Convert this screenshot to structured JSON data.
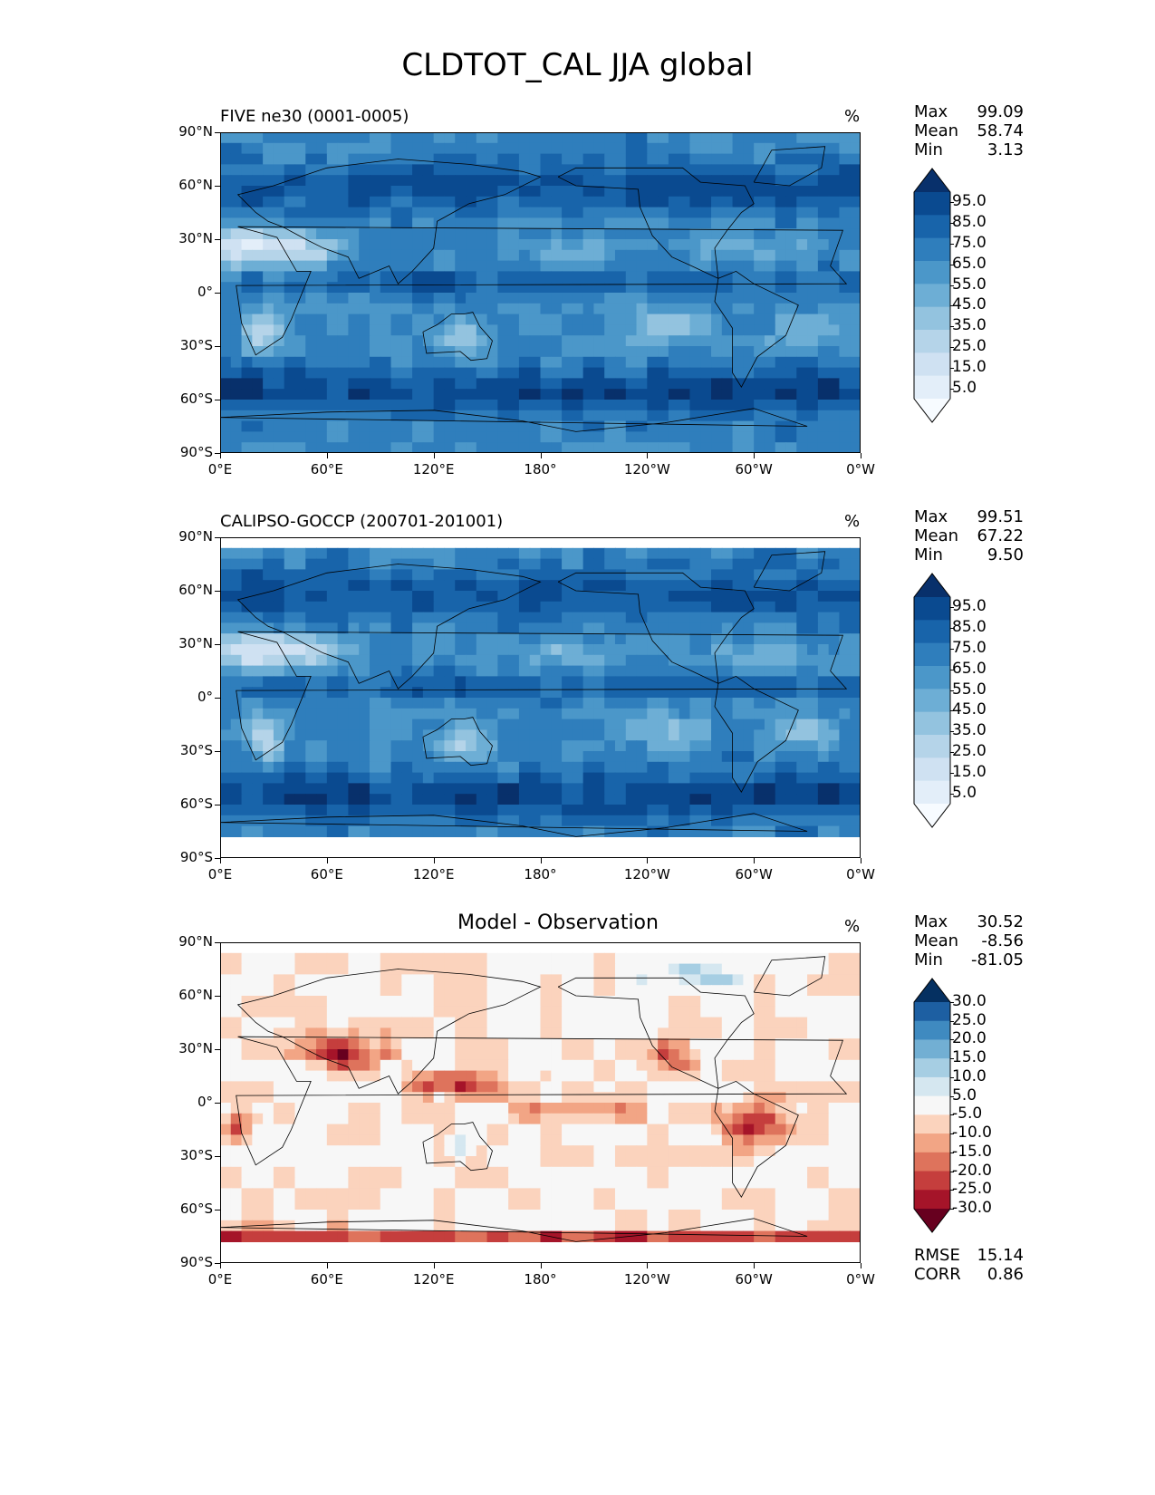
{
  "title": "CLDTOT_CAL JJA global",
  "chart_data": [
    {
      "type": "heatmap",
      "panel": "test",
      "title": "FIVE ne30 (0001-0005)",
      "units": "%",
      "xlabel": "",
      "ylabel": "",
      "xticks": [
        "0°E",
        "60°E",
        "120°E",
        "180°",
        "120°W",
        "60°W",
        "0°W"
      ],
      "yticks": [
        "90°N",
        "60°N",
        "30°N",
        "0°",
        "30°S",
        "60°S",
        "90°S"
      ],
      "xlim": [
        0,
        360
      ],
      "ylim": [
        -90,
        90
      ],
      "stats": {
        "max_label": "Max",
        "max": "99.09",
        "mean_label": "Mean",
        "mean": "58.74",
        "min_label": "Min",
        "min": "3.13"
      },
      "colorbar": {
        "levels": [
          0,
          10,
          20,
          30,
          40,
          50,
          60,
          70,
          80,
          90,
          100
        ],
        "labels": [
          "95.0",
          "85.0",
          "75.0",
          "65.0",
          "55.0",
          "45.0",
          "35.0",
          "25.0",
          "15.0",
          "5.0"
        ],
        "colors": [
          "#f7fbff",
          "#e3eef9",
          "#cfe1f2",
          "#b5d4e9",
          "#93c3df",
          "#6daed5",
          "#4b97c9",
          "#2f7ebc",
          "#1864aa",
          "#0a4a90",
          "#08306b"
        ]
      }
    },
    {
      "type": "heatmap",
      "panel": "reference",
      "title": "CALIPSO-GOCCP (200701-201001)",
      "units": "%",
      "xlabel": "",
      "ylabel": "",
      "xticks": [
        "0°E",
        "60°E",
        "120°E",
        "180°",
        "120°W",
        "60°W",
        "0°W"
      ],
      "yticks": [
        "90°N",
        "60°N",
        "30°N",
        "0°",
        "30°S",
        "60°S",
        "90°S"
      ],
      "xlim": [
        0,
        360
      ],
      "ylim": [
        -90,
        90
      ],
      "stats": {
        "max_label": "Max",
        "max": "99.51",
        "mean_label": "Mean",
        "mean": "67.22",
        "min_label": "Min",
        "min": "9.50"
      },
      "colorbar": {
        "levels": [
          0,
          10,
          20,
          30,
          40,
          50,
          60,
          70,
          80,
          90,
          100
        ],
        "labels": [
          "95.0",
          "85.0",
          "75.0",
          "65.0",
          "55.0",
          "45.0",
          "35.0",
          "25.0",
          "15.0",
          "5.0"
        ],
        "colors": [
          "#f7fbff",
          "#e3eef9",
          "#cfe1f2",
          "#b5d4e9",
          "#93c3df",
          "#6daed5",
          "#4b97c9",
          "#2f7ebc",
          "#1864aa",
          "#0a4a90",
          "#08306b"
        ]
      }
    },
    {
      "type": "heatmap",
      "panel": "difference",
      "title": "Model - Observation",
      "units": "%",
      "xlabel": "",
      "ylabel": "",
      "xticks": [
        "0°E",
        "60°E",
        "120°E",
        "180°",
        "120°W",
        "60°W",
        "0°W"
      ],
      "yticks": [
        "90°N",
        "60°N",
        "30°N",
        "0°",
        "30°S",
        "60°S",
        "90°S"
      ],
      "xlim": [
        0,
        360
      ],
      "ylim": [
        -90,
        90
      ],
      "stats": {
        "max_label": "Max",
        "max": "30.52",
        "mean_label": "Mean",
        "mean": "-8.56",
        "min_label": "Min",
        "min": "-81.05",
        "rmse_label": "RMSE",
        "rmse": "15.14",
        "corr_label": "CORR",
        "corr": "0.86"
      },
      "colorbar": {
        "levels": [
          -30,
          -25,
          -20,
          -15,
          -10,
          -5,
          5,
          10,
          15,
          20,
          25,
          30
        ],
        "labels": [
          "30.0",
          "25.0",
          "20.0",
          "15.0",
          "10.0",
          "5.0",
          "-5.0",
          "-10.0",
          "-15.0",
          "-20.0",
          "-25.0",
          "-30.0"
        ],
        "colors": [
          "#67001f",
          "#a51429",
          "#c53e3d",
          "#de735c",
          "#f2a585",
          "#fbd3bd",
          "#f7f7f7",
          "#d5e7f0",
          "#a6cee3",
          "#72afd3",
          "#3f8ac0",
          "#1d5fa2",
          "#053061"
        ]
      }
    }
  ]
}
